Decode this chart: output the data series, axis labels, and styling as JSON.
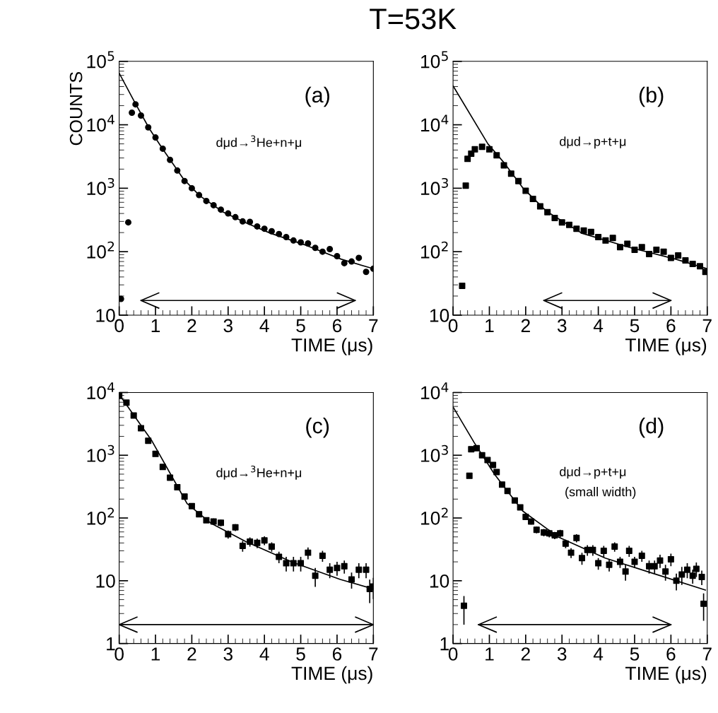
{
  "chart_data": [
    {
      "type": "scatter",
      "title": "T=53K",
      "ylabel": "COUNTS",
      "xlabel": "TIME (μs)",
      "log": "y",
      "xlim": [
        0,
        7
      ],
      "ylim": [
        10,
        100000
      ],
      "xticks": [
        0,
        1,
        2,
        3,
        4,
        5,
        6,
        7
      ],
      "yticks": [
        {
          "value": 10,
          "label": "10"
        },
        {
          "value": 100,
          "label": "10$^{2}$"
        },
        {
          "value": 1000,
          "label": "10$^{3}$"
        },
        {
          "value": 10000,
          "label": "10$^{4}$"
        },
        {
          "value": 100000,
          "label": "10$^{5}$"
        }
      ],
      "grid": false,
      "legend": false,
      "annotations": [
        "(a)",
        "dμd→$^{3}$He+n+μ"
      ],
      "series": [
        {
          "marker": "circle",
          "color": "#000000",
          "x": [
            0.05,
            0.25,
            0.35,
            0.45,
            0.6,
            0.8,
            1.0,
            1.2,
            1.4,
            1.6,
            1.8,
            2.0,
            2.2,
            2.4,
            2.6,
            2.8,
            3.0,
            3.2,
            3.4,
            3.6,
            3.8,
            4.0,
            4.2,
            4.4,
            4.6,
            4.8,
            5.0,
            5.2,
            5.4,
            5.6,
            5.8,
            6.0,
            6.2,
            6.4,
            6.6,
            6.8,
            7.0
          ],
          "values": [
            18,
            290,
            15500,
            21000,
            14000,
            9100,
            6300,
            4200,
            2800,
            1900,
            1300,
            1000,
            780,
            630,
            540,
            460,
            400,
            350,
            300,
            295,
            250,
            230,
            210,
            190,
            170,
            150,
            140,
            135,
            115,
            100,
            110,
            85,
            66,
            70,
            80,
            48,
            54
          ]
        },
        {
          "type": "line",
          "marker": "none",
          "color": "#000000",
          "x": [
            0,
            0.44,
            0.83,
            1.18,
            1.77,
            2.22,
            2.87,
            3.52,
            4.17,
            5.15,
            6.12,
            6.9
          ],
          "values": [
            65000,
            22000,
            8700,
            4300,
            1400,
            760,
            420,
            280,
            195,
            126,
            76,
            56
          ]
        },
        {
          "type": "line",
          "marker": "none",
          "color": "#000000",
          "x": [
            0.6,
            6.5
          ],
          "values": [
            17,
            17
          ]
        }
      ]
    },
    {
      "type": "scatter",
      "xlabel": "TIME (μs)",
      "log": "y",
      "xlim": [
        0,
        7
      ],
      "ylim": [
        10,
        100000
      ],
      "xticks": [
        0,
        1,
        2,
        3,
        4,
        5,
        6,
        7
      ],
      "yticks": [
        {
          "value": 10,
          "label": "10"
        },
        {
          "value": 100,
          "label": "10$^{2}$"
        },
        {
          "value": 1000,
          "label": "10$^{3}$"
        },
        {
          "value": 10000,
          "label": "10$^{4}$"
        },
        {
          "value": 100000,
          "label": "10$^{5}$"
        }
      ],
      "grid": false,
      "legend": false,
      "annotations": [
        "(b)",
        "dμd→p+t+μ"
      ],
      "series": [
        {
          "marker": "square",
          "color": "#000000",
          "x": [
            0.25,
            0.35,
            0.4,
            0.5,
            0.6,
            0.8,
            1.0,
            1.2,
            1.4,
            1.6,
            1.8,
            2.0,
            2.2,
            2.4,
            2.6,
            2.8,
            3.0,
            3.2,
            3.4,
            3.6,
            3.8,
            4.0,
            4.2,
            4.4,
            4.6,
            4.8,
            5.0,
            5.2,
            5.4,
            5.6,
            5.8,
            6.0,
            6.2,
            6.4,
            6.6,
            6.8,
            6.95
          ],
          "values": [
            29,
            1100,
            2900,
            3500,
            4100,
            4500,
            4100,
            3300,
            2300,
            1700,
            1300,
            910,
            680,
            520,
            420,
            340,
            290,
            265,
            230,
            215,
            205,
            170,
            150,
            165,
            118,
            133,
            107,
            118,
            92,
            107,
            100,
            80,
            87,
            73,
            64,
            59,
            48
          ]
        },
        {
          "type": "line",
          "marker": "none",
          "color": "#000000",
          "x": [
            0,
            0.96,
            1.41,
            1.93,
            2.58,
            3.55,
            4.85,
            6.14,
            7.0
          ],
          "values": [
            41000,
            5000,
            2500,
            1000,
            430,
            195,
            117,
            76,
            54
          ]
        },
        {
          "type": "line",
          "marker": "none",
          "color": "#000000",
          "x": [
            2.5,
            6.0
          ],
          "values": [
            17,
            17
          ]
        }
      ]
    },
    {
      "type": "scatter",
      "xlabel": "TIME (μs)",
      "log": "y",
      "xlim": [
        0,
        7
      ],
      "ylim": [
        1,
        10000
      ],
      "xticks": [
        0,
        1,
        2,
        3,
        4,
        5,
        6,
        7
      ],
      "yticks": [
        {
          "value": 1,
          "label": "1"
        },
        {
          "value": 10,
          "label": "10"
        },
        {
          "value": 100,
          "label": "10$^{2}$"
        },
        {
          "value": 1000,
          "label": "10$^{3}$"
        },
        {
          "value": 10000,
          "label": "10$^{4}$"
        }
      ],
      "grid": false,
      "legend": false,
      "annotations": [
        "(c)",
        "dμd→$^{3}$He+n+μ"
      ],
      "series": [
        {
          "marker": "square",
          "color": "#000000",
          "x": [
            0.0,
            0.2,
            0.4,
            0.6,
            0.8,
            1.0,
            1.2,
            1.4,
            1.6,
            1.8,
            2.0,
            2.2,
            2.4,
            2.6,
            2.8,
            3.0,
            3.2,
            3.4,
            3.6,
            3.8,
            4.0,
            4.2,
            4.4,
            4.6,
            4.8,
            5.0,
            5.2,
            5.4,
            5.6,
            5.8,
            6.0,
            6.2,
            6.4,
            6.6,
            6.8,
            6.9,
            7.0
          ],
          "values": [
            8900,
            6900,
            4300,
            2700,
            1700,
            1050,
            650,
            440,
            310,
            220,
            155,
            115,
            92,
            88,
            84,
            55,
            71,
            36,
            42,
            40,
            44,
            35,
            24,
            19,
            19,
            19,
            28,
            12,
            25,
            15,
            16,
            17,
            10.5,
            15,
            15,
            7.4,
            8.1
          ],
          "errors": [
            null,
            null,
            null,
            null,
            null,
            null,
            null,
            null,
            null,
            null,
            null,
            null,
            null,
            10,
            10,
            8,
            9,
            7,
            7,
            7,
            7,
            6,
            5,
            5,
            5,
            5,
            6,
            4,
            5,
            4,
            4,
            4,
            3,
            4,
            4,
            3,
            3
          ]
        },
        {
          "type": "line",
          "marker": "none",
          "color": "#000000",
          "x": [
            0,
            0.9,
            1.87,
            2.52,
            3.49,
            4.79,
            6.09,
            7.0
          ],
          "values": [
            9300,
            1700,
            170,
            83,
            42,
            19.5,
            10.5,
            7.4
          ]
        },
        {
          "type": "line",
          "marker": "none",
          "color": "#000000",
          "x": [
            0,
            7
          ],
          "values": [
            2,
            2
          ]
        }
      ]
    },
    {
      "type": "scatter",
      "xlabel": "TIME (μs)",
      "log": "y",
      "xlim": [
        0,
        7
      ],
      "ylim": [
        1,
        10000
      ],
      "xticks": [
        0,
        1,
        2,
        3,
        4,
        5,
        6,
        7
      ],
      "yticks": [
        {
          "value": 1,
          "label": "1"
        },
        {
          "value": 10,
          "label": "10"
        },
        {
          "value": 100,
          "label": "10$^{2}$"
        },
        {
          "value": 1000,
          "label": "10$^{3}$"
        },
        {
          "value": 10000,
          "label": "10$^{4}$"
        }
      ],
      "grid": false,
      "legend": false,
      "annotations": [
        "(d)",
        "dμd→p+t+μ",
        "(small width)"
      ],
      "series": [
        {
          "marker": "square",
          "color": "#000000",
          "x": [
            0.3,
            0.45,
            0.5,
            0.65,
            0.8,
            0.95,
            1.1,
            1.2,
            1.35,
            1.5,
            1.7,
            1.85,
            2.0,
            2.15,
            2.3,
            2.5,
            2.65,
            2.8,
            2.95,
            3.1,
            3.25,
            3.4,
            3.55,
            3.7,
            3.85,
            4.0,
            4.15,
            4.3,
            4.45,
            4.6,
            4.75,
            4.85,
            5.0,
            5.2,
            5.4,
            5.55,
            5.7,
            5.85,
            6.0,
            6.15,
            6.3,
            6.45,
            6.6,
            6.7,
            6.85,
            6.9
          ],
          "values": [
            4.0,
            470,
            1250,
            1300,
            1000,
            840,
            700,
            540,
            340,
            270,
            190,
            148,
            104,
            88,
            65,
            59,
            57,
            53,
            57,
            39,
            28,
            48,
            23,
            31,
            31,
            19,
            30,
            18,
            35,
            20,
            14,
            30,
            20,
            25,
            17,
            17,
            21,
            14,
            22,
            10,
            12.6,
            15,
            12,
            15.5,
            11.5,
            4.3
          ],
          "errors": [
            [
              2.0,
              5.7
            ],
            null,
            null,
            null,
            null,
            null,
            null,
            null,
            null,
            null,
            null,
            null,
            10,
            9,
            8,
            8,
            8,
            7,
            8,
            6,
            5,
            7,
            5,
            6,
            6,
            4,
            6,
            4,
            6,
            4,
            4,
            6,
            4,
            5,
            4,
            4,
            5,
            4,
            5,
            3,
            4,
            4,
            3,
            4,
            3,
            2
          ]
        },
        {
          "type": "line",
          "marker": "none",
          "color": "#000000",
          "x": [
            0,
            0.58,
            1.14,
            1.92,
            2.89,
            4.19,
            5.49,
            6.95
          ],
          "values": [
            5900,
            1600,
            500,
            129,
            50,
            23,
            13.2,
            7.1
          ]
        },
        {
          "type": "line",
          "marker": "none",
          "color": "#000000",
          "x": [
            0.7,
            6.0
          ],
          "values": [
            2,
            2
          ]
        }
      ]
    }
  ]
}
